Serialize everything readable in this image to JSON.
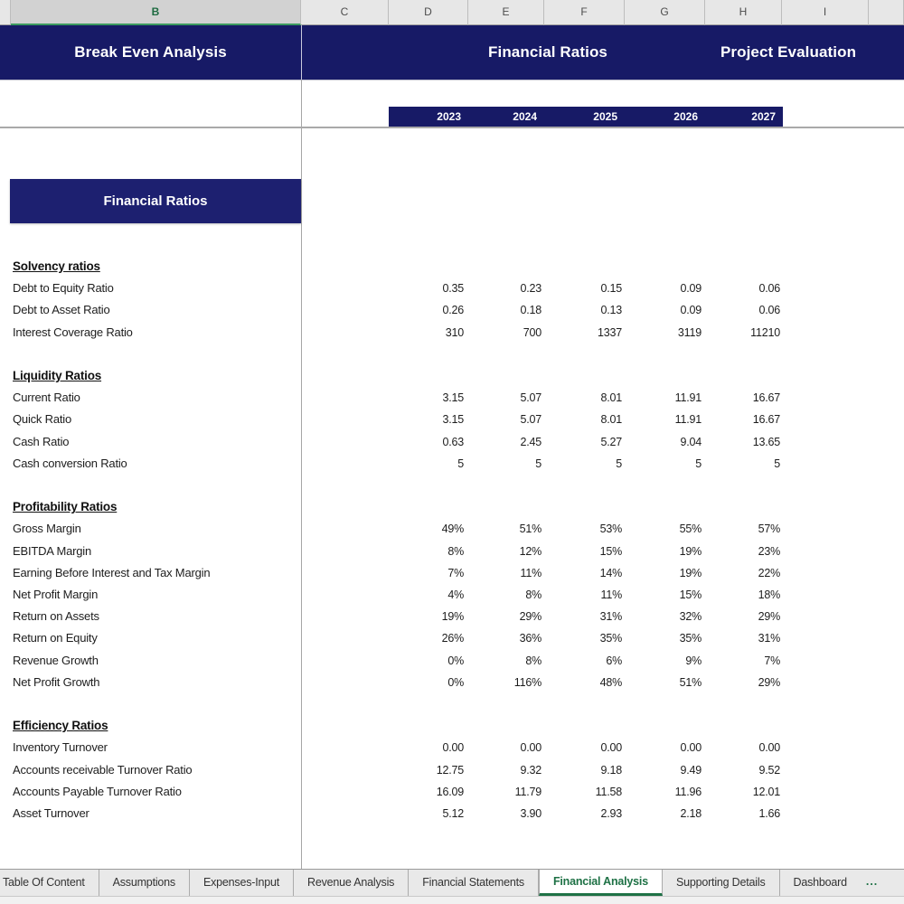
{
  "columns": {
    "headers": [
      "",
      "B",
      "C",
      "D",
      "E",
      "F",
      "G",
      "H",
      "I",
      ""
    ],
    "selected": "B"
  },
  "title_banner": {
    "left": "Break Even Analysis",
    "center": "Financial Ratios",
    "right": "Project Evaluation"
  },
  "year_header": {
    "years": [
      "2023",
      "2024",
      "2025",
      "2026",
      "2027"
    ]
  },
  "section_banner": {
    "label": "Financial Ratios"
  },
  "ratio_table": {
    "sections": [
      {
        "heading": "Solvency ratios",
        "rows": [
          {
            "label": "Debt to Equity Ratio",
            "values": [
              "0.35",
              "0.23",
              "0.15",
              "0.09",
              "0.06"
            ]
          },
          {
            "label": "Debt to Asset Ratio",
            "values": [
              "0.26",
              "0.18",
              "0.13",
              "0.09",
              "0.06"
            ]
          },
          {
            "label": "Interest Coverage Ratio",
            "values": [
              "310",
              "700",
              "1337",
              "3119",
              "11210"
            ]
          }
        ]
      },
      {
        "heading": "Liquidity Ratios",
        "rows": [
          {
            "label": "Current Ratio",
            "values": [
              "3.15",
              "5.07",
              "8.01",
              "11.91",
              "16.67"
            ]
          },
          {
            "label": "Quick Ratio",
            "values": [
              "3.15",
              "5.07",
              "8.01",
              "11.91",
              "16.67"
            ]
          },
          {
            "label": "Cash Ratio",
            "values": [
              "0.63",
              "2.45",
              "5.27",
              "9.04",
              "13.65"
            ]
          },
          {
            "label": "Cash conversion Ratio",
            "values": [
              "5",
              "5",
              "5",
              "5",
              "5"
            ]
          }
        ]
      },
      {
        "heading": "Profitability Ratios",
        "rows": [
          {
            "label": "Gross Margin",
            "values": [
              "49%",
              "51%",
              "53%",
              "55%",
              "57%"
            ]
          },
          {
            "label": "EBITDA Margin",
            "values": [
              "8%",
              "12%",
              "15%",
              "19%",
              "23%"
            ]
          },
          {
            "label": "Earning Before Interest and Tax Margin",
            "values": [
              "7%",
              "11%",
              "14%",
              "19%",
              "22%"
            ]
          },
          {
            "label": "Net Profit Margin",
            "values": [
              "4%",
              "8%",
              "11%",
              "15%",
              "18%"
            ]
          },
          {
            "label": "Return on Assets",
            "values": [
              "19%",
              "29%",
              "31%",
              "32%",
              "29%"
            ]
          },
          {
            "label": "Return on Equity",
            "values": [
              "26%",
              "36%",
              "35%",
              "35%",
              "31%"
            ]
          },
          {
            "label": "Revenue Growth",
            "values": [
              "0%",
              "8%",
              "6%",
              "9%",
              "7%"
            ]
          },
          {
            "label": "Net Profit Growth",
            "values": [
              "0%",
              "116%",
              "48%",
              "51%",
              "29%"
            ]
          }
        ]
      },
      {
        "heading": "Efficiency Ratios",
        "rows": [
          {
            "label": "Inventory Turnover",
            "values": [
              "0.00",
              "0.00",
              "0.00",
              "0.00",
              "0.00"
            ]
          },
          {
            "label": "Accounts receivable Turnover Ratio",
            "values": [
              "12.75",
              "9.32",
              "9.18",
              "9.49",
              "9.52"
            ]
          },
          {
            "label": "Accounts Payable Turnover Ratio",
            "values": [
              "16.09",
              "11.79",
              "11.58",
              "11.96",
              "12.01"
            ]
          },
          {
            "label": "Asset Turnover",
            "values": [
              "5.12",
              "3.90",
              "2.93",
              "2.18",
              "1.66"
            ]
          }
        ]
      }
    ]
  },
  "sheet_tabs": {
    "tabs": [
      {
        "label": "Table Of Content",
        "active": false
      },
      {
        "label": "Assumptions",
        "active": false
      },
      {
        "label": "Expenses-Input",
        "active": false
      },
      {
        "label": "Revenue Analysis",
        "active": false
      },
      {
        "label": "Financial Statements",
        "active": false
      },
      {
        "label": "Financial Analysis",
        "active": true
      },
      {
        "label": "Supporting Details",
        "active": false
      },
      {
        "label": "Dashboard",
        "active": false
      }
    ],
    "overflow_indicator": "..."
  },
  "colors": {
    "navy": "#171a66",
    "accent_green": "#1e7145",
    "pane_line": "#a6a6a6"
  }
}
